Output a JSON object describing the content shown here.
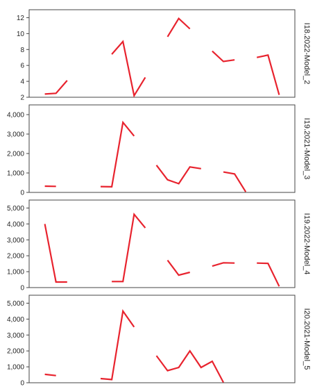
{
  "chart_data": {
    "type": "line",
    "layout": "small-multiples-vertical",
    "line_color": "#e8232e",
    "frame_color": "#444444",
    "grid": false,
    "xlabel": "",
    "ylabel": "",
    "x": [
      0,
      1,
      2,
      3,
      4,
      5,
      6,
      7,
      8,
      9,
      10,
      11,
      12,
      13,
      14,
      15,
      16,
      17,
      18,
      19,
      20,
      21,
      22,
      23
    ],
    "panels": [
      {
        "label": "I18.2022-Model_2",
        "ylim": [
          2,
          13
        ],
        "ticks": [
          2,
          4,
          6,
          8,
          10,
          12
        ],
        "tick_labels": [
          "2",
          "4",
          "6",
          "8",
          "10",
          "12"
        ],
        "values": [
          null,
          2.4,
          2.5,
          4.1,
          null,
          null,
          null,
          7.4,
          9.0,
          2.2,
          4.5,
          null,
          9.6,
          11.9,
          10.6,
          null,
          7.8,
          6.5,
          6.7,
          null,
          7.0,
          7.3,
          2.3,
          null
        ]
      },
      {
        "label": "I19.2021-Model_3",
        "ylim": [
          0,
          4500
        ],
        "ticks": [
          0,
          1000,
          2000,
          3000,
          4000
        ],
        "tick_labels": [
          "0",
          "1,000",
          "2,000",
          "3,000",
          "4,000"
        ],
        "values": [
          null,
          320,
          310,
          null,
          null,
          null,
          300,
          290,
          3600,
          2900,
          null,
          1400,
          650,
          450,
          1310,
          1220,
          null,
          1050,
          950,
          30,
          null,
          null,
          null,
          null
        ]
      },
      {
        "label": "I19.2022-Model_4",
        "ylim": [
          0,
          5500
        ],
        "ticks": [
          0,
          1000,
          2000,
          3000,
          4000,
          5000
        ],
        "tick_labels": [
          "0",
          "1,000",
          "2,000",
          "3,000",
          "4,000",
          "5,000"
        ],
        "values": [
          null,
          4000,
          350,
          350,
          null,
          null,
          null,
          380,
          380,
          4600,
          3750,
          null,
          1720,
          780,
          960,
          null,
          1350,
          1560,
          1540,
          null,
          1540,
          1520,
          80,
          null
        ]
      },
      {
        "label": "I20.2021-Model_5",
        "ylim": [
          0,
          5500
        ],
        "ticks": [
          0,
          1000,
          2000,
          3000,
          4000,
          5000
        ],
        "tick_labels": [
          "0",
          "1,000",
          "2,000",
          "3,000",
          "4,000",
          "5,000"
        ],
        "values": [
          null,
          530,
          450,
          null,
          null,
          null,
          260,
          200,
          4500,
          3500,
          null,
          1700,
          760,
          960,
          2000,
          960,
          1350,
          20,
          null,
          null,
          null,
          null,
          null,
          null
        ]
      }
    ]
  }
}
